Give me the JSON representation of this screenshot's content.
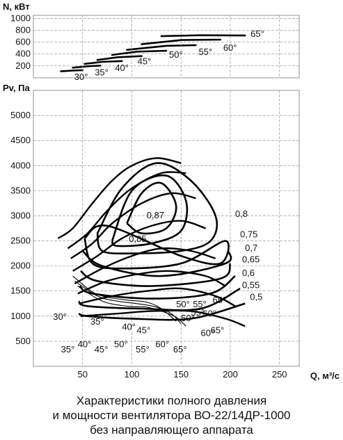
{
  "chart_data": [
    {
      "type": "line",
      "ylabel": "N, кВт",
      "ylim": [
        0,
        1050
      ],
      "yticks": [
        "200",
        "400",
        "600",
        "800",
        "1000"
      ],
      "grid": true,
      "series": [
        {
          "name": "30°",
          "x": [
            28,
            40,
            50
          ],
          "y": [
            110,
            122,
            130
          ]
        },
        {
          "name": "35°",
          "x": [
            40,
            55,
            68
          ],
          "y": [
            170,
            195,
            205
          ]
        },
        {
          "name": "40°",
          "x": [
            52,
            70,
            90
          ],
          "y": [
            235,
            268,
            282
          ]
        },
        {
          "name": "45°",
          "x": [
            65,
            85,
            110
          ],
          "y": [
            300,
            345,
            365
          ]
        },
        {
          "name": "50°",
          "x": [
            80,
            105,
            135
          ],
          "y": [
            385,
            440,
            455
          ]
        },
        {
          "name": "55°",
          "x": [
            95,
            135,
            165
          ],
          "y": [
            470,
            538,
            548
          ]
        },
        {
          "name": "60°",
          "x": [
            110,
            150,
            190
          ],
          "y": [
            565,
            635,
            642
          ]
        },
        {
          "name": "65°",
          "x": [
            130,
            170,
            215
          ],
          "y": [
            700,
            715,
            710
          ]
        }
      ]
    },
    {
      "type": "line",
      "ylabel": "Pv, Па",
      "xlabel": "Q, м³/с",
      "xlim": [
        0,
        270
      ],
      "ylim": [
        0,
        5500
      ],
      "xticks": [
        "50",
        "100",
        "150",
        "200",
        "250"
      ],
      "yticks": [
        "500",
        "1000",
        "1500",
        "2000",
        "2500",
        "3000",
        "3500",
        "4000",
        "4500",
        "5000"
      ],
      "grid": true,
      "blade_angle_curves": [
        {
          "name": "30°",
          "x": [
            25,
            40,
            60,
            80,
            100,
            125,
            150
          ],
          "y": [
            2550,
            2750,
            3250,
            3700,
            4000,
            4150,
            4050
          ]
        },
        {
          "name": "35°",
          "x": [
            35,
            55,
            75,
            100,
            130,
            155
          ],
          "y": [
            2350,
            2650,
            3100,
            3550,
            3850,
            3850
          ]
        },
        {
          "name": "40°",
          "x": [
            38,
            60,
            80,
            110,
            140,
            165
          ],
          "y": [
            2150,
            2450,
            2850,
            3250,
            3450,
            3350
          ]
        },
        {
          "name": "45°",
          "x": [
            40,
            65,
            90,
            120,
            150,
            175
          ],
          "y": [
            1900,
            2200,
            2550,
            2800,
            2900,
            2750
          ]
        },
        {
          "name": "50°",
          "x": [
            42,
            70,
            100,
            130,
            160,
            185
          ],
          "y": [
            1650,
            1950,
            2200,
            2350,
            2300,
            2150
          ]
        },
        {
          "name": "55°",
          "x": [
            45,
            75,
            110,
            140,
            175,
            195
          ],
          "y": [
            1450,
            1700,
            1850,
            1900,
            1800,
            1600
          ]
        },
        {
          "name": "60°",
          "x": [
            46,
            80,
            115,
            150,
            185,
            205
          ],
          "y": [
            1250,
            1400,
            1500,
            1550,
            1400,
            1200
          ]
        },
        {
          "name": "65°",
          "x": [
            48,
            85,
            120,
            160,
            195,
            215
          ],
          "y": [
            1000,
            1050,
            1100,
            1100,
            950,
            800
          ]
        }
      ],
      "efficiency_curves": [
        {
          "label": "0,87",
          "x": [
            95,
            110,
            130,
            145,
            135,
            110,
            95
          ],
          "y": [
            2850,
            3450,
            3650,
            3200,
            2750,
            2650,
            2850
          ]
        },
        {
          "label": "0,85",
          "x": [
            80,
            100,
            135,
            155,
            150,
            120,
            85,
            80
          ],
          "y": [
            2500,
            3500,
            3800,
            3300,
            2700,
            2450,
            2400,
            2500
          ]
        },
        {
          "label": "0,8",
          "x": [
            65,
            90,
            125,
            160,
            185,
            180,
            150,
            100,
            70,
            65
          ],
          "y": [
            2650,
            3550,
            4050,
            3700,
            3000,
            2500,
            2300,
            2250,
            2300,
            2650
          ]
        },
        {
          "label": "0,75",
          "x": [
            52,
            75,
            150,
            190,
            195,
            150,
            90,
            60,
            52
          ],
          "y": [
            2550,
            2800,
            2200,
            2050,
            2500,
            2050,
            1950,
            2050,
            2550
          ]
        },
        {
          "label": "0,7",
          "x": [
            50,
            70,
            130,
            195,
            198
          ],
          "y": [
            2300,
            2000,
            1800,
            2050,
            2300
          ]
        },
        {
          "label": "0,65",
          "x": [
            48,
            65,
            120,
            190,
            200
          ],
          "y": [
            1900,
            1700,
            1600,
            1750,
            2050
          ]
        },
        {
          "label": "0,6",
          "x": [
            47,
            60,
            120,
            180,
            205
          ],
          "y": [
            1600,
            1450,
            1350,
            1450,
            1800
          ]
        },
        {
          "label": "0,55",
          "x": [
            46,
            55,
            110,
            170,
            210
          ],
          "y": [
            1300,
            1200,
            1150,
            1150,
            1550
          ]
        },
        {
          "label": "0,5",
          "x": [
            46,
            55,
            100,
            160,
            215
          ],
          "y": [
            1050,
            1000,
            950,
            950,
            1250
          ]
        }
      ],
      "stall_lines": [
        {
          "x": [
            40,
            60,
            75,
            95,
            115,
            130,
            145
          ],
          "y": [
            1800,
            1480,
            1380,
            1320,
            1280,
            1150,
            900
          ]
        },
        {
          "x": [
            42,
            65,
            85,
            105,
            125,
            140,
            150
          ],
          "y": [
            1700,
            1400,
            1300,
            1250,
            1180,
            1050,
            850
          ]
        },
        {
          "x": [
            45,
            70,
            95,
            115,
            130,
            145,
            155
          ],
          "y": [
            1600,
            1300,
            1200,
            1180,
            1100,
            980,
            800
          ]
        }
      ],
      "bottom_angle_labels": [
        "30°",
        "35°",
        "40°",
        "45°",
        "50°",
        "55°",
        "60°",
        "65°"
      ],
      "bottom_angle_labels_lower": [
        "35°",
        "40°",
        "45°",
        "50°",
        "55°",
        "60°",
        "65°"
      ],
      "bottom_angle_labels_upper": [
        "50°",
        "55°",
        "60°",
        "65°"
      ]
    }
  ],
  "caption": {
    "line1": "Характеристики полного давления",
    "line2": "и мощности вентилятора ВО-22/14ДР-1000",
    "line3": "без направляющего аппарата"
  }
}
